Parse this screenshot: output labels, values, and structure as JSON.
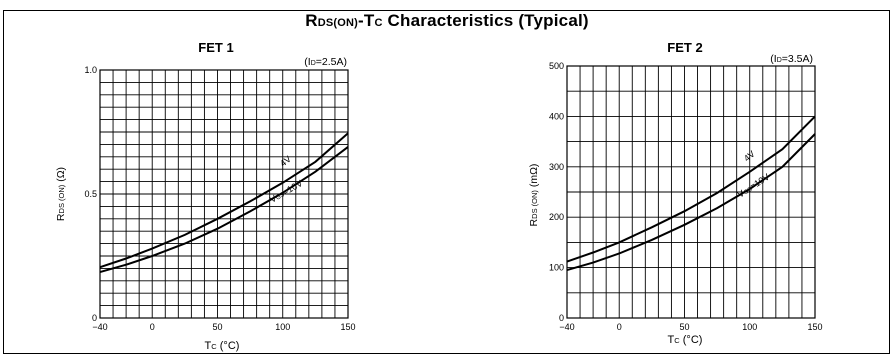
{
  "title": {
    "r_main": "R",
    "r_sub": "DS(ON)",
    "mid": "-T",
    "t_sub": "C",
    "rest": " Characteristics (Typical)"
  },
  "charts_text": [
    {
      "panel_title": "FET 1",
      "condition_pre": "(I",
      "condition_sub": "D",
      "condition_post": "=2.5A)",
      "ylabel_main": "R",
      "ylabel_sub": "DS (ON)",
      "ylabel_unit": " (Ω)",
      "xlabel_main": "T",
      "xlabel_sub": "C",
      "xlabel_unit": "  (°C)"
    },
    {
      "panel_title": "FET 2",
      "condition_pre": "(I",
      "condition_sub": "D",
      "condition_post": "=3.5A)",
      "ylabel_main": "R",
      "ylabel_sub": "DS  (ON)",
      "ylabel_unit": "  (mΩ)",
      "xlabel_main": "T",
      "xlabel_sub": "C",
      "xlabel_unit": "  (°C)"
    }
  ],
  "chart_data": [
    {
      "type": "line",
      "title": "FET 1",
      "xlim": [
        -40,
        150
      ],
      "ylim": [
        0,
        1.0
      ],
      "x_ticks": [
        -40,
        0,
        50,
        100,
        150
      ],
      "x_tick_labels": [
        "−40",
        "0",
        "50",
        "100",
        "150"
      ],
      "y_ticks": [
        0,
        0.5,
        1.0
      ],
      "y_tick_labels": [
        "0",
        "0.5",
        "1.0"
      ],
      "grid": true,
      "series": [
        {
          "name": "4V",
          "x": [
            -40,
            -20,
            0,
            25,
            50,
            75,
            100,
            125,
            150
          ],
          "y": [
            0.205,
            0.24,
            0.28,
            0.335,
            0.4,
            0.47,
            0.545,
            0.63,
            0.745
          ]
        },
        {
          "name": "VGS=10V",
          "x": [
            -40,
            -20,
            0,
            25,
            50,
            75,
            100,
            125,
            150
          ],
          "y": [
            0.185,
            0.215,
            0.25,
            0.3,
            0.36,
            0.43,
            0.505,
            0.59,
            0.69
          ]
        }
      ],
      "series_labels": [
        {
          "main": "4V",
          "sub": ""
        },
        {
          "main": "V",
          "sub": "GS",
          "post": "=10V"
        }
      ]
    },
    {
      "type": "line",
      "title": "FET 2",
      "xlim": [
        -40,
        150
      ],
      "ylim": [
        0,
        500
      ],
      "x_ticks": [
        -40,
        0,
        50,
        100,
        150
      ],
      "x_tick_labels": [
        "−40",
        "0",
        "50",
        "100",
        "150"
      ],
      "y_ticks": [
        0,
        100,
        200,
        300,
        400,
        500
      ],
      "y_tick_labels": [
        "0",
        "100",
        "200",
        "300",
        "400",
        "500"
      ],
      "grid": true,
      "series": [
        {
          "name": "4V",
          "x": [
            -40,
            -20,
            0,
            25,
            50,
            75,
            100,
            125,
            150
          ],
          "y": [
            112,
            130,
            150,
            180,
            212,
            248,
            290,
            335,
            400
          ]
        },
        {
          "name": "VGS=10V",
          "x": [
            -40,
            -20,
            0,
            25,
            50,
            75,
            100,
            125,
            150
          ],
          "y": [
            95,
            110,
            128,
            155,
            185,
            218,
            256,
            300,
            365
          ]
        }
      ],
      "series_labels": [
        {
          "main": "4V",
          "sub": ""
        },
        {
          "main": "V",
          "sub": "GS",
          "post": "=10V"
        }
      ]
    }
  ]
}
